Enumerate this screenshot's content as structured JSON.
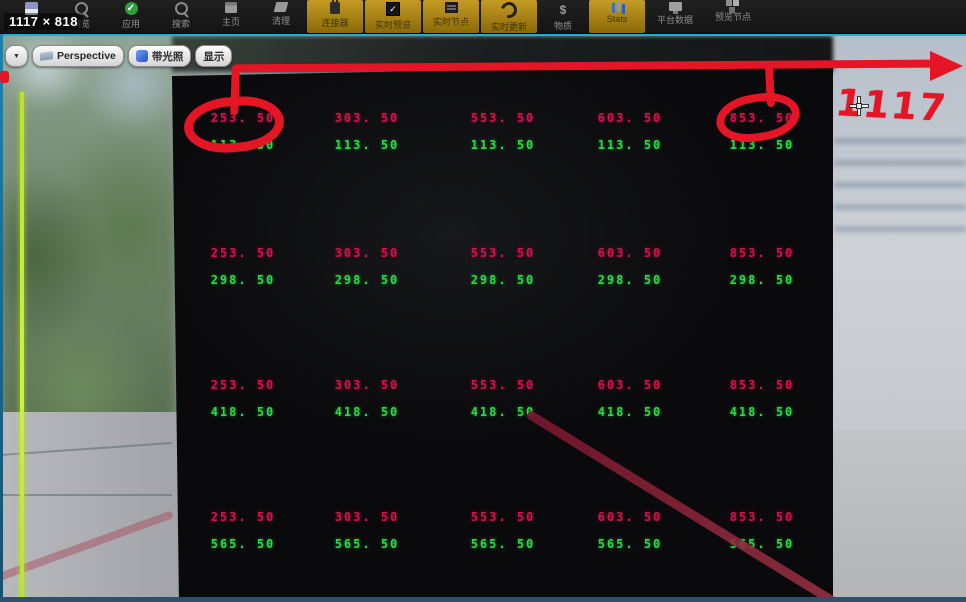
{
  "window": {
    "resolution_overlay": "1117 × 818"
  },
  "toolbar": {
    "items": [
      {
        "id": "save",
        "label": "",
        "icon": "save-icon",
        "style": "normal"
      },
      {
        "id": "browse",
        "label": "浏览",
        "icon": "magnifier-icon",
        "style": "normal"
      },
      {
        "id": "apply",
        "label": "应用",
        "icon": "check-circle-icon",
        "style": "normal"
      },
      {
        "id": "search",
        "label": "搜索",
        "icon": "search-icon",
        "style": "normal"
      },
      {
        "id": "home",
        "label": "主页",
        "icon": "home-icon",
        "style": "normal"
      },
      {
        "id": "clean",
        "label": "清理",
        "icon": "clean-icon",
        "style": "normal"
      },
      {
        "id": "connector",
        "label": "连接器",
        "icon": "connector-icon",
        "style": "orange"
      },
      {
        "id": "live-preview",
        "label": "实时预览",
        "icon": "live-preview-icon",
        "style": "orange"
      },
      {
        "id": "live-node",
        "label": "实时节点",
        "icon": "live-node-icon",
        "style": "orange"
      },
      {
        "id": "live-update",
        "label": "实时更新",
        "icon": "refresh-icon",
        "style": "orange"
      },
      {
        "id": "material",
        "label": "物质",
        "icon": "material-icon",
        "style": "normal"
      },
      {
        "id": "stats",
        "label": "Stats",
        "icon": "stats-icon",
        "style": "orange"
      },
      {
        "id": "platform-data",
        "label": "平台数据",
        "icon": "platform-icon",
        "style": "normal"
      },
      {
        "id": "preview-node",
        "label": "预览节点",
        "icon": "preview-node-icon",
        "style": "normal"
      }
    ]
  },
  "viewport_toolbar": {
    "dropdown_caret": "▼",
    "perspective_label": "Perspective",
    "lit_label": "带光照",
    "show_label": "显示"
  },
  "grid": {
    "x_labels": [
      "253. 50",
      "303. 50",
      "553. 50",
      "603. 50",
      "853. 50"
    ],
    "y_labels": [
      "113. 50",
      "298. 50",
      "418. 50",
      "565. 50"
    ]
  },
  "annotations": {
    "handwritten_number": "1117",
    "circled_values": [
      "253. 50",
      "853. 50"
    ]
  },
  "colors": {
    "x_value_red": "#d4114a",
    "y_value_green": "#2bd947",
    "annotation_red": "#e51525",
    "accent_teal": "#18b2d8",
    "toolbar_orange": "#b8891a",
    "laser_maroon": "#8c2440",
    "guide_chartreuse": "#b9e427"
  }
}
